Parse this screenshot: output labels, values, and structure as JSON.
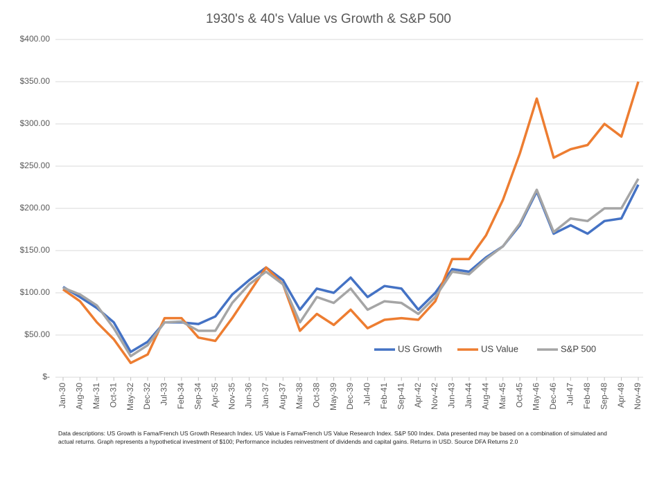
{
  "chart_data": {
    "type": "line",
    "title": "1930's & 40's Value vs Growth & S&P 500",
    "note": "Data descriptions: US Growth is Fama/French US Growth Research Index. US Value is Fama/French US Value Research Index. S&P 500 Index. Data presented may be based on a combination of simulated and actual returns. Graph represents a hypothetical investment of $100; Performance includes reinvestment of dividends and capital gains. Returns in USD. Source DFA Returns 2.0",
    "categories": [
      "Jan-30",
      "Aug-30",
      "Mar-31",
      "Oct-31",
      "May-32",
      "Dec-32",
      "Jul-33",
      "Feb-34",
      "Sep-34",
      "Apr-35",
      "Nov-35",
      "Jun-36",
      "Jan-37",
      "Aug-37",
      "Mar-38",
      "Oct-38",
      "May-39",
      "Dec-39",
      "Jul-40",
      "Feb-41",
      "Sep-41",
      "Apr-42",
      "Nov-42",
      "Jun-43",
      "Jan-44",
      "Aug-44",
      "Mar-45",
      "Oct-45",
      "May-46",
      "Dec-46",
      "Jul-47",
      "Feb-48",
      "Sep-48",
      "Apr-49",
      "Nov-49"
    ],
    "series": [
      {
        "name": "US Growth",
        "color": "#4472c4",
        "values": [
          107,
          95,
          82,
          65,
          30,
          42,
          65,
          65,
          63,
          72,
          98,
          115,
          130,
          115,
          80,
          105,
          100,
          118,
          95,
          108,
          105,
          80,
          100,
          128,
          125,
          142,
          155,
          180,
          220,
          170,
          180,
          170,
          185,
          188,
          228
        ]
      },
      {
        "name": "US Value",
        "color": "#ed7d31",
        "values": [
          104,
          90,
          65,
          45,
          17,
          27,
          70,
          70,
          47,
          43,
          70,
          100,
          130,
          110,
          55,
          75,
          62,
          80,
          58,
          68,
          70,
          68,
          90,
          140,
          140,
          168,
          210,
          265,
          330,
          260,
          270,
          275,
          300,
          285,
          350
        ]
      },
      {
        "name": "S&P 500",
        "color": "#a5a5a5",
        "values": [
          106,
          98,
          85,
          58,
          25,
          38,
          65,
          66,
          55,
          55,
          88,
          110,
          125,
          110,
          65,
          95,
          88,
          105,
          80,
          90,
          88,
          75,
          95,
          125,
          122,
          140,
          155,
          182,
          222,
          172,
          188,
          185,
          200,
          200,
          235
        ]
      }
    ],
    "ylim": [
      0,
      400
    ],
    "yticks": [
      {
        "value": 0,
        "label": "$-"
      },
      {
        "value": 50,
        "label": "$50.00"
      },
      {
        "value": 100,
        "label": "$100.00"
      },
      {
        "value": 150,
        "label": "$150.00"
      },
      {
        "value": 200,
        "label": "$200.00"
      },
      {
        "value": 250,
        "label": "$250.00"
      },
      {
        "value": 300,
        "label": "$300.00"
      },
      {
        "value": 350,
        "label": "$350.00"
      },
      {
        "value": 400,
        "label": "$400.00"
      }
    ],
    "grid": true,
    "legend": "lower right"
  }
}
